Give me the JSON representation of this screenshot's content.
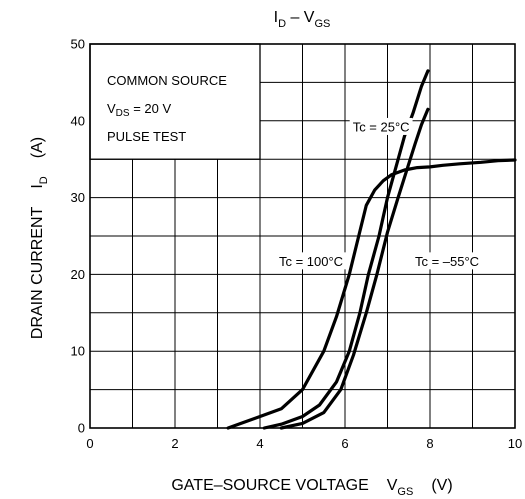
{
  "chart_data": {
    "type": "line",
    "title_main": "I",
    "title_sub": "D",
    "title_mid": " – V",
    "title_sub2": "GS",
    "xlabel": "GATE–SOURCE VOLTAGE",
    "xlabel_symbol": "V",
    "xlabel_symbol_sub": "GS",
    "xlabel_unit": "(V)",
    "ylabel": "DRAIN CURRENT",
    "ylabel_symbol": "I",
    "ylabel_symbol_sub": "D",
    "ylabel_unit": "(A)",
    "xlim": [
      0,
      10
    ],
    "ylim": [
      0,
      50
    ],
    "x_ticks": [
      0,
      2,
      4,
      6,
      8,
      10
    ],
    "y_ticks": [
      0,
      10,
      20,
      30,
      40,
      50
    ],
    "x_minor_step": 1,
    "y_minor_step": 5,
    "grid": true,
    "legend_box": {
      "line1": "COMMON SOURCE",
      "line2_prefix": "V",
      "line2_sub": "DS",
      "line2_suffix": " = 20 V",
      "line3": "PULSE TEST",
      "x_range": [
        0,
        4
      ],
      "y_range": [
        35,
        50
      ]
    },
    "series": [
      {
        "name": "Tc = 25°C",
        "x": [
          4.1,
          4.5,
          5.0,
          5.4,
          5.8,
          6.1,
          6.35,
          6.55,
          6.8,
          7.0,
          7.2,
          7.4,
          7.6,
          7.8,
          7.95
        ],
        "y": [
          0,
          0.5,
          1.5,
          3.0,
          6.0,
          10.0,
          15.0,
          20.0,
          25.0,
          30.0,
          34.0,
          38.0,
          41.0,
          44.5,
          46.5
        ]
      },
      {
        "name": "Tc = 100°C",
        "x": [
          3.25,
          3.6,
          4.0,
          4.5,
          5.0,
          5.5,
          5.8,
          6.1,
          6.3,
          6.5,
          6.7,
          6.9,
          7.1,
          7.4,
          7.7,
          8.0,
          8.3,
          8.7,
          9.2,
          9.6,
          10.0
        ],
        "y": [
          0,
          0.7,
          1.5,
          2.5,
          5.0,
          10.0,
          14.5,
          20.0,
          24.5,
          29.0,
          31.0,
          32.2,
          33.0,
          33.6,
          33.9,
          34.0,
          34.2,
          34.4,
          34.6,
          34.8,
          34.9
        ]
      },
      {
        "name": "Tc = –55°C",
        "x": [
          4.5,
          5.0,
          5.5,
          5.9,
          6.2,
          6.5,
          6.75,
          7.0,
          7.25,
          7.45,
          7.65,
          7.8,
          7.95
        ],
        "y": [
          0,
          0.6,
          2.0,
          5.0,
          9.5,
          15.0,
          20.0,
          25.5,
          30.0,
          33.5,
          37.0,
          39.5,
          41.5
        ]
      }
    ],
    "annotations": [
      {
        "text": "Tc = 25°C",
        "x": 6.85,
        "y": 39.2
      },
      {
        "text": "Tc = 100°C",
        "x": 5.2,
        "y": 21.7
      },
      {
        "text": "Tc = –55°C",
        "x": 8.4,
        "y": 21.7
      }
    ]
  }
}
